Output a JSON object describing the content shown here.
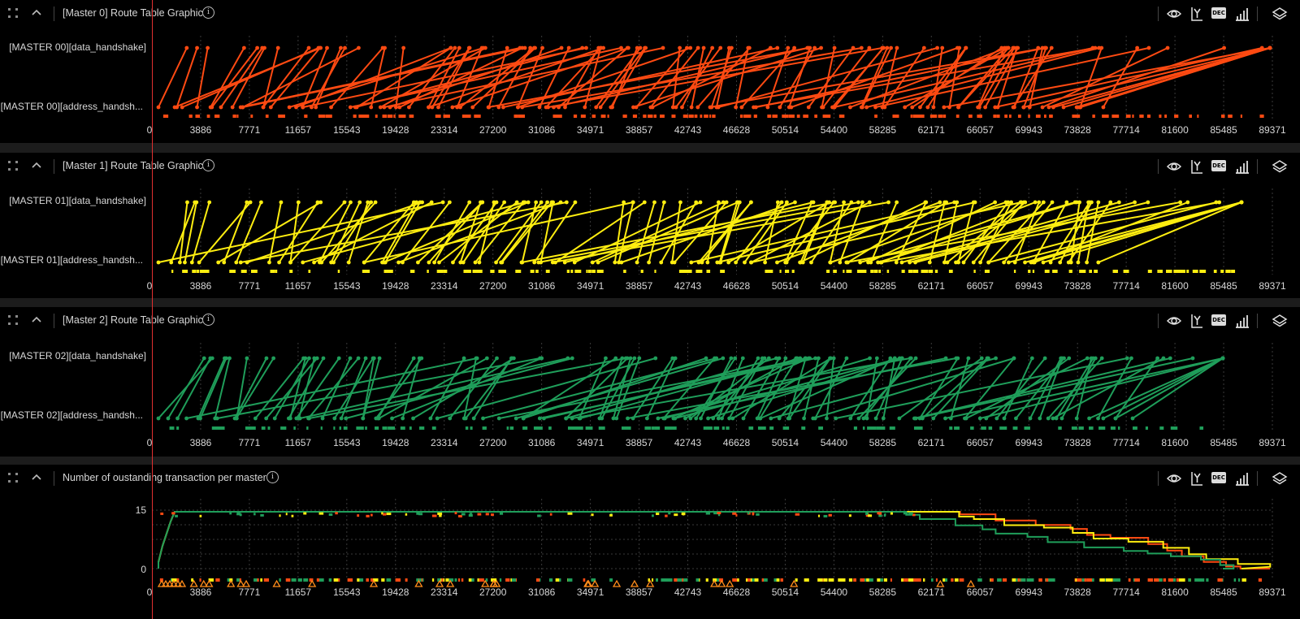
{
  "x_ticks": [
    "0",
    "3886",
    "7771",
    "11657",
    "15543",
    "19428",
    "23314",
    "27200",
    "31086",
    "34971",
    "38857",
    "42743",
    "46628",
    "50514",
    "54400",
    "58285",
    "62171",
    "66057",
    "69943",
    "73828",
    "77714",
    "81600",
    "85485",
    "89371"
  ],
  "x_max": 89371,
  "panels": [
    {
      "title": "[Master 0] Route Table Graphic",
      "top_label": "[MASTER 00][data_handshake]",
      "bottom_label": "[MASTER 00][address_handsh...",
      "color": "#ff4a12"
    },
    {
      "title": "[Master 1] Route Table Graphic",
      "top_label": "[MASTER 01][data_handshake]",
      "bottom_label": "[MASTER 01][address_handsh...",
      "color": "#ffee10"
    },
    {
      "title": "[Master 2] Route Table Graphic",
      "top_label": "[MASTER 02][data_handshake]",
      "bottom_label": "[MASTER 02][address_handsh...",
      "color": "#1f9e5a"
    }
  ],
  "outstanding": {
    "title": "Number of oustanding transaction per master",
    "y_ticks": [
      "15",
      "0"
    ],
    "y_max": 15
  },
  "icons": [
    "drag-handle-icon",
    "collapse-chevron-icon",
    "info-icon",
    "eye-icon",
    "y-axis-icon",
    "dec-format-icon",
    "bar-chart-icon",
    "layers-icon"
  ],
  "dec_label": "DEC",
  "info_glyph": "i"
}
